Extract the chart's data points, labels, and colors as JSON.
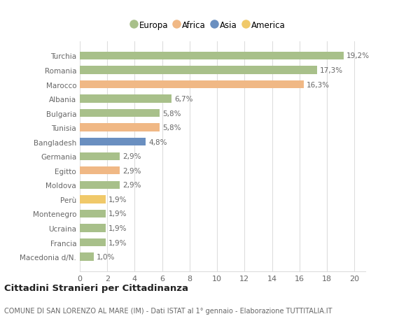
{
  "categories": [
    "Macedonia d/N.",
    "Francia",
    "Ucraina",
    "Montenegro",
    "Perù",
    "Moldova",
    "Egitto",
    "Germania",
    "Bangladesh",
    "Tunisia",
    "Bulgaria",
    "Albania",
    "Marocco",
    "Romania",
    "Turchia"
  ],
  "values": [
    1.0,
    1.9,
    1.9,
    1.9,
    1.9,
    2.9,
    2.9,
    2.9,
    4.8,
    5.8,
    5.8,
    6.7,
    16.3,
    17.3,
    19.2
  ],
  "labels": [
    "1,0%",
    "1,9%",
    "1,9%",
    "1,9%",
    "1,9%",
    "2,9%",
    "2,9%",
    "2,9%",
    "4,8%",
    "5,8%",
    "5,8%",
    "6,7%",
    "16,3%",
    "17,3%",
    "19,2%"
  ],
  "colors": [
    "#a8c08a",
    "#a8c08a",
    "#a8c08a",
    "#a8c08a",
    "#f0c96a",
    "#a8c08a",
    "#f0b885",
    "#a8c08a",
    "#6a8fc0",
    "#f0b885",
    "#a8c08a",
    "#a8c08a",
    "#f0b885",
    "#a8c08a",
    "#a8c08a"
  ],
  "legend": [
    {
      "label": "Europa",
      "color": "#a8c08a"
    },
    {
      "label": "Africa",
      "color": "#f0b885"
    },
    {
      "label": "Asia",
      "color": "#6a8fc0"
    },
    {
      "label": "America",
      "color": "#f0c96a"
    }
  ],
  "xlim": [
    0,
    20
  ],
  "xticks": [
    0,
    2,
    4,
    6,
    8,
    10,
    12,
    14,
    16,
    18,
    20
  ],
  "title1": "Cittadini Stranieri per Cittadinanza",
  "title2": "COMUNE DI SAN LORENZO AL MARE (IM) - Dati ISTAT al 1° gennaio - Elaborazione TUTTITALIA.IT",
  "bg_color": "#ffffff",
  "bar_height": 0.55,
  "grid_color": "#dddddd",
  "label_color": "#666666",
  "tick_label_color": "#666666"
}
